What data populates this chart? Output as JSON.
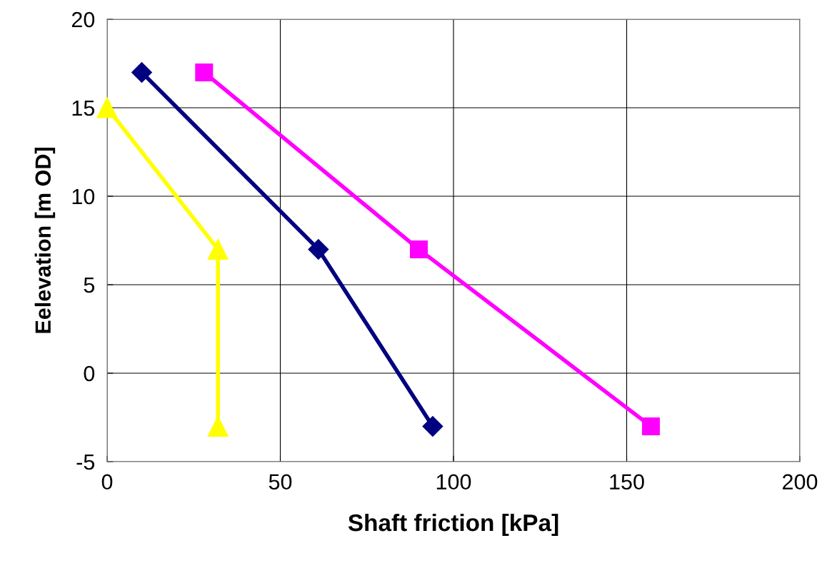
{
  "chart_data": {
    "type": "line",
    "xlabel": "Shaft friction [kPa]",
    "ylabel": "Eelevation [m OD]",
    "xlim": [
      0,
      200
    ],
    "xticks": [
      0,
      50,
      100,
      150,
      200
    ],
    "ylim": [
      -5,
      20
    ],
    "yticks": [
      -5,
      0,
      5,
      10,
      15,
      20
    ],
    "grid": true,
    "legend": false,
    "series": [
      {
        "color": "#000080",
        "marker": "diamond",
        "x": [
          10,
          61,
          94
        ],
        "values": [
          17,
          7,
          -3
        ]
      },
      {
        "color": "#ff00ff",
        "marker": "square",
        "x": [
          28,
          90,
          157
        ],
        "values": [
          17,
          7,
          -3
        ]
      },
      {
        "color": "#ffff00",
        "marker": "triangle",
        "x": [
          0,
          32,
          32
        ],
        "values": [
          15,
          7,
          -3
        ]
      }
    ]
  }
}
